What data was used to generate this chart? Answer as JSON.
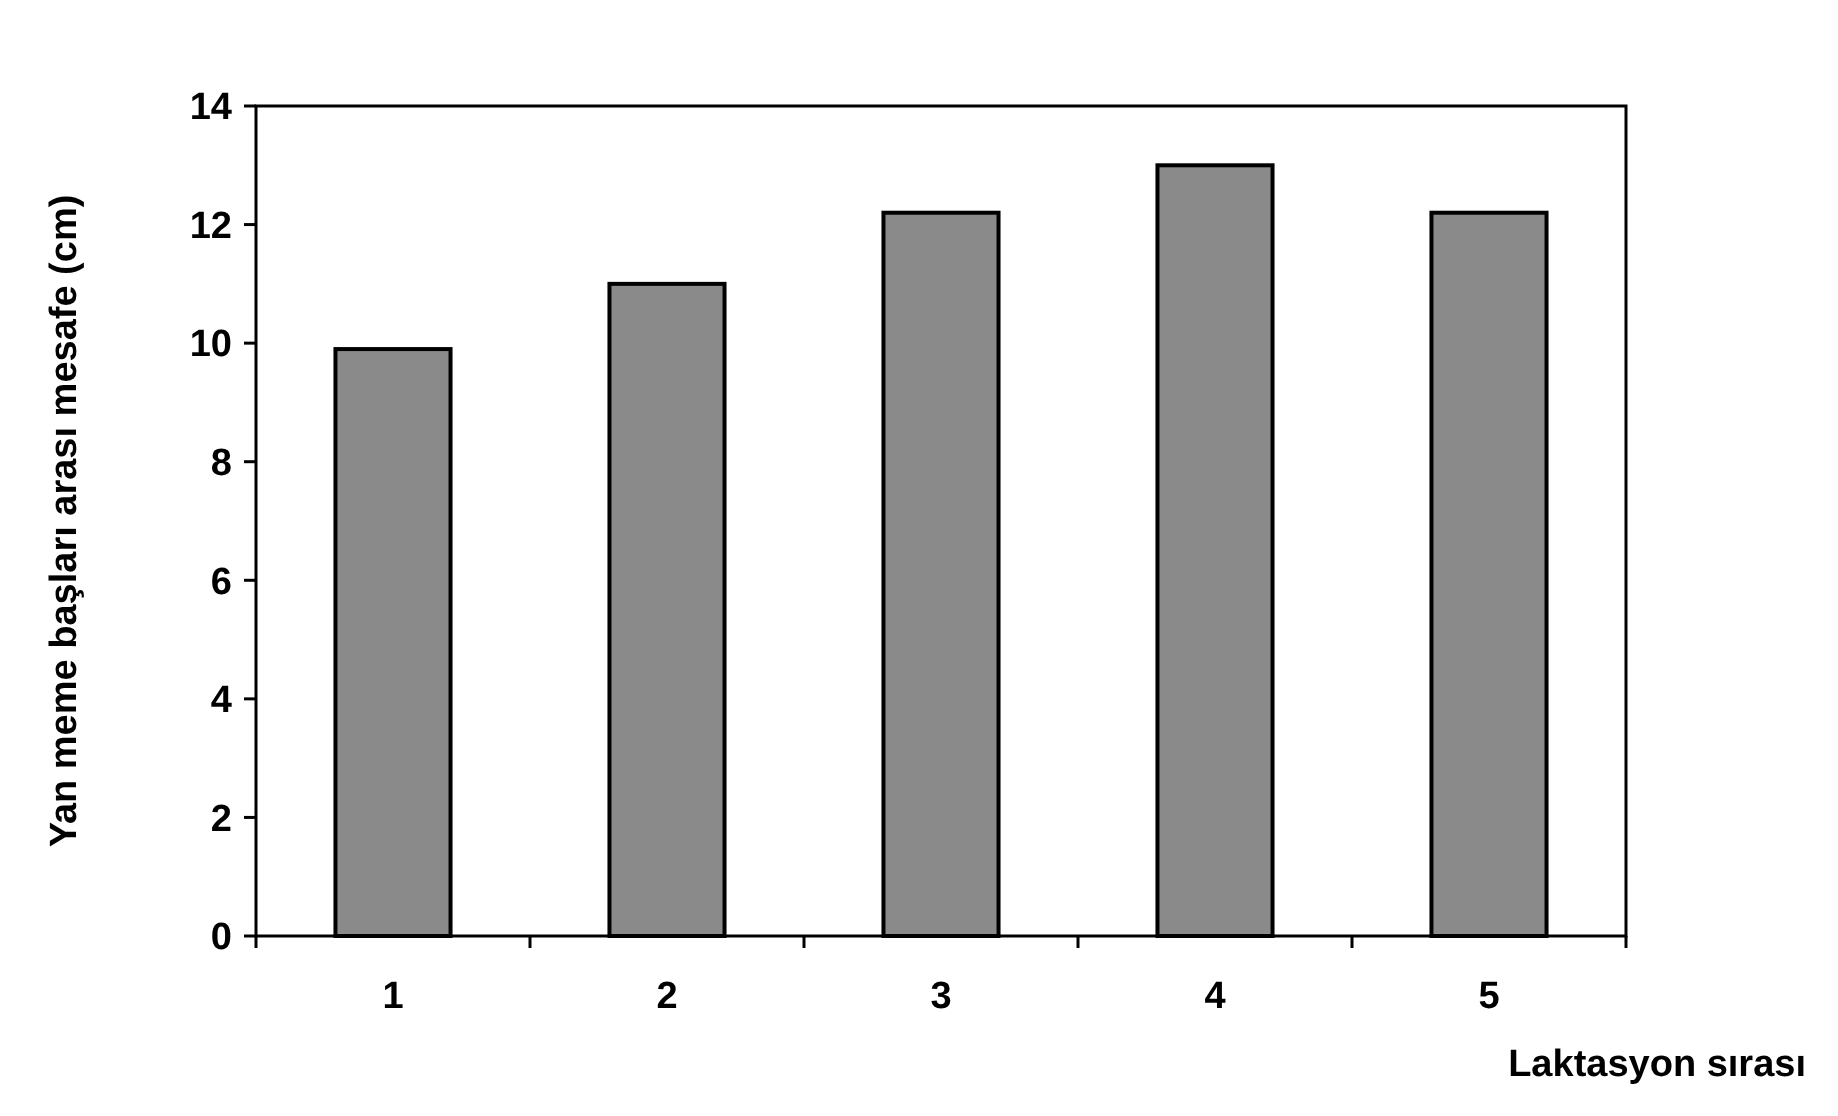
{
  "chart_data": {
    "type": "bar",
    "xlabel": "Laktasyon sırası",
    "ylabel": "Yan meme başları arası mesafe (cm)",
    "categories": [
      "1",
      "2",
      "3",
      "4",
      "5"
    ],
    "values": [
      9.9,
      11.0,
      12.2,
      13.0,
      12.2
    ],
    "color": "#8a8a8a",
    "ylim": [
      0,
      14
    ],
    "yticks": [
      0,
      2,
      4,
      6,
      8,
      10,
      12,
      14
    ],
    "grid": false
  }
}
